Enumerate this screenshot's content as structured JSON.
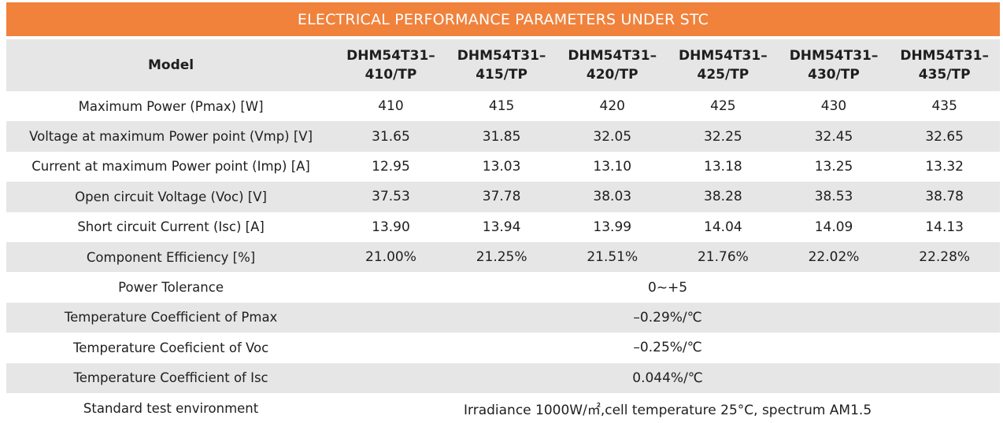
{
  "title": "ELECTRICAL PERFORMANCE PARAMETERS UNDER STC",
  "header": {
    "model_label": "Model",
    "models": [
      {
        "line1": "DHM54T31–",
        "line2": "410/TP"
      },
      {
        "line1": "DHM54T31–",
        "line2": "415/TP"
      },
      {
        "line1": "DHM54T31–",
        "line2": "420/TP"
      },
      {
        "line1": "DHM54T31–",
        "line2": "425/TP"
      },
      {
        "line1": "DHM54T31–",
        "line2": "430/TP"
      },
      {
        "line1": "DHM54T31–",
        "line2": "435/TP"
      }
    ]
  },
  "rows": [
    {
      "label": "Maximum Power (Pmax) [W]",
      "values": [
        "410",
        "415",
        "420",
        "425",
        "430",
        "435"
      ]
    },
    {
      "label": "Voltage at maximum Power point (Vmp) [V]",
      "values": [
        "31.65",
        "31.85",
        "32.05",
        "32.25",
        "32.45",
        "32.65"
      ]
    },
    {
      "label": "Current at maximum Power point (Imp) [A]",
      "values": [
        "12.95",
        "13.03",
        "13.10",
        "13.18",
        "13.25",
        "13.32"
      ]
    },
    {
      "label": "Open circuit Voltage (Voc) [V]",
      "values": [
        "37.53",
        "37.78",
        "38.03",
        "38.28",
        "38.53",
        "38.78"
      ]
    },
    {
      "label": "Short circuit Current (Isc) [A]",
      "values": [
        "13.90",
        "13.94",
        "13.99",
        "14.04",
        "14.09",
        "14.13"
      ]
    },
    {
      "label": "Component Efficiency [%]",
      "values": [
        "21.00%",
        "21.25%",
        "21.51%",
        "21.76%",
        "22.02%",
        "22.28%"
      ]
    }
  ],
  "merged_rows": [
    {
      "label": "Power Tolerance",
      "value": "0~+5"
    },
    {
      "label": "Temperature Coefficient of Pmax",
      "value": "–0.29%/℃"
    },
    {
      "label": "Temperature Coeficient of Voc",
      "value": "–0.25%/℃"
    },
    {
      "label": "Temperature Coefficient of Isc",
      "value": "0.044%/℃"
    },
    {
      "label": "Standard test environment",
      "value": "Irradiance 1000W/㎡,cell temperature 25°C, spectrum AM1.5"
    }
  ],
  "colors": {
    "banner": "#f0823c",
    "shade": "#e6e6e6",
    "text": "#1e1e1e"
  }
}
